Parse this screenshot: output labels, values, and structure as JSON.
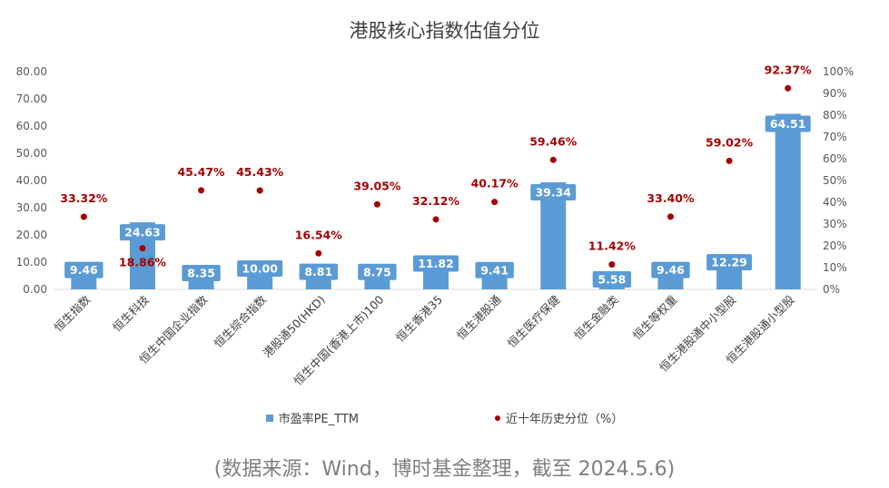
{
  "chart_data": {
    "type": "bar",
    "title": "港股核心指数估值分位",
    "categories": [
      "恒生指数",
      "恒生科技",
      "恒生中国企业指数",
      "恒生综合指数",
      "港股通50(HKD)",
      "恒生中国(香港上市)100",
      "恒生香港35",
      "恒生港股通",
      "恒生医疗保健",
      "恒生金融类",
      "恒生等权重",
      "恒生港股通中小型股",
      "恒生港股通小型股"
    ],
    "series": [
      {
        "name": "市盈率PE_TTM",
        "type": "bar",
        "axis": "left",
        "color": "#5b9bd5",
        "values": [
          9.46,
          24.63,
          8.35,
          10.0,
          8.81,
          8.75,
          11.82,
          9.41,
          39.34,
          5.58,
          9.46,
          12.29,
          64.51
        ],
        "labels": [
          "9.46",
          "24.63",
          "8.35",
          "10.00",
          "8.81",
          "8.75",
          "11.82",
          "9.41",
          "39.34",
          "5.58",
          "9.46",
          "12.29",
          "64.51"
        ]
      },
      {
        "name": "近十年历史分位（%）",
        "type": "scatter",
        "axis": "right",
        "color": "#a50000",
        "values": [
          33.32,
          18.86,
          45.47,
          45.43,
          16.54,
          39.05,
          32.12,
          40.17,
          59.46,
          11.42,
          33.4,
          59.02,
          92.37
        ],
        "labels": [
          "33.32%",
          "18.86%",
          "45.47%",
          "45.43%",
          "16.54%",
          "39.05%",
          "32.12%",
          "40.17%",
          "59.46%",
          "11.42%",
          "33.40%",
          "59.02%",
          "92.37%"
        ]
      }
    ],
    "y_left": {
      "ylim": [
        0,
        80
      ],
      "ticks": [
        "0.00",
        "10.00",
        "20.00",
        "30.00",
        "40.00",
        "50.00",
        "60.00",
        "70.00",
        "80.00"
      ]
    },
    "y_right": {
      "ylim": [
        0,
        100
      ],
      "ticks": [
        "0%",
        "10%",
        "20%",
        "30%",
        "40%",
        "50%",
        "60%",
        "70%",
        "80%",
        "90%",
        "100%"
      ]
    },
    "grid": false,
    "legend": "bottom"
  },
  "source_note": "(数据来源：Wind，博时基金整理，截至 2024.5.6)"
}
